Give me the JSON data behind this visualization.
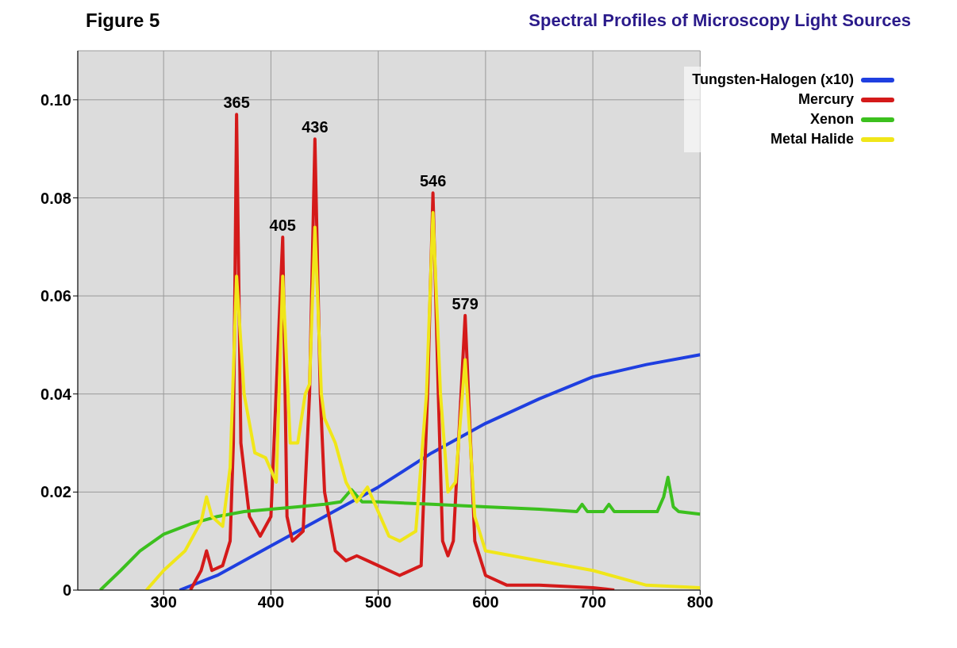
{
  "chart_data": {
    "type": "line",
    "title": "Spectral Profiles of Microscopy Light Sources",
    "annotations": [
      "Figure 5",
      {
        "text": "365",
        "x": 368,
        "y": 0.097
      },
      {
        "text": "405",
        "x": 411,
        "y": 0.072
      },
      {
        "text": "436",
        "x": 441,
        "y": 0.092
      },
      {
        "text": "546",
        "x": 551,
        "y": 0.081
      },
      {
        "text": "579",
        "x": 581,
        "y": 0.056
      }
    ],
    "xlim": [
      220,
      800
    ],
    "xticks": [
      300,
      400,
      500,
      600,
      700,
      800
    ],
    "ylim": [
      0,
      0.11
    ],
    "yticks": [
      0,
      0.02,
      0.04,
      0.06,
      0.08,
      {
        "value": 0.1,
        "label": "0.10"
      }
    ],
    "grid": true,
    "legend": "top right",
    "marker": "none",
    "line_style": "solid",
    "series": [
      {
        "name": "Tungsten-Halogen (x10)",
        "color": "#1f3fe0",
        "x": [
          315,
          350,
          400,
          450,
          500,
          550,
          600,
          650,
          700,
          750,
          800
        ],
        "values": [
          0,
          0.003,
          0.009,
          0.015,
          0.021,
          0.028,
          0.034,
          0.039,
          0.0435,
          0.046,
          0.048
        ]
      },
      {
        "name": "Mercury",
        "color": "#d41a1a",
        "x": [
          325,
          335,
          340,
          345,
          355,
          362,
          365,
          368,
          372,
          380,
          390,
          400,
          411,
          415,
          420,
          430,
          436,
          441,
          446,
          450,
          460,
          470,
          480,
          490,
          500,
          520,
          540,
          546,
          551,
          556,
          560,
          565,
          570,
          581,
          590,
          600,
          620,
          650,
          700,
          720
        ],
        "values": [
          0,
          0.004,
          0.008,
          0.004,
          0.005,
          0.01,
          0.03,
          0.097,
          0.03,
          0.015,
          0.011,
          0.015,
          0.072,
          0.015,
          0.01,
          0.012,
          0.04,
          0.092,
          0.04,
          0.02,
          0.008,
          0.006,
          0.007,
          0.006,
          0.005,
          0.003,
          0.005,
          0.04,
          0.081,
          0.04,
          0.01,
          0.007,
          0.01,
          0.056,
          0.01,
          0.003,
          0.001,
          0.001,
          0.0005,
          0
        ]
      },
      {
        "name": "Xenon",
        "color": "#3cc01e",
        "x": [
          241,
          260,
          278,
          300,
          325,
          350,
          375,
          400,
          425,
          450,
          465,
          475,
          485,
          500,
          550,
          600,
          650,
          685,
          690,
          695,
          710,
          715,
          720,
          760,
          766,
          770,
          775,
          780,
          800
        ],
        "values": [
          0,
          0.004,
          0.008,
          0.0114,
          0.0135,
          0.015,
          0.016,
          0.0165,
          0.017,
          0.0175,
          0.018,
          0.0205,
          0.018,
          0.018,
          0.0175,
          0.017,
          0.0165,
          0.016,
          0.0175,
          0.016,
          0.016,
          0.0175,
          0.016,
          0.016,
          0.019,
          0.023,
          0.017,
          0.016,
          0.0155
        ]
      },
      {
        "name": "Metal Halide",
        "color": "#f0e619",
        "x": [
          284,
          300,
          320,
          335,
          340,
          345,
          355,
          362,
          368,
          375,
          385,
          395,
          405,
          411,
          418,
          425,
          432,
          436,
          441,
          447,
          450,
          460,
          470,
          480,
          490,
          500,
          510,
          520,
          535,
          545,
          551,
          558,
          565,
          572,
          581,
          590,
          600,
          650,
          700,
          750,
          800
        ],
        "values": [
          0,
          0.004,
          0.008,
          0.014,
          0.019,
          0.015,
          0.013,
          0.025,
          0.064,
          0.04,
          0.028,
          0.027,
          0.022,
          0.064,
          0.03,
          0.03,
          0.04,
          0.042,
          0.074,
          0.04,
          0.035,
          0.03,
          0.022,
          0.018,
          0.021,
          0.016,
          0.011,
          0.01,
          0.012,
          0.04,
          0.077,
          0.04,
          0.02,
          0.022,
          0.047,
          0.015,
          0.008,
          0.006,
          0.004,
          0.001,
          0.0005
        ]
      }
    ]
  }
}
